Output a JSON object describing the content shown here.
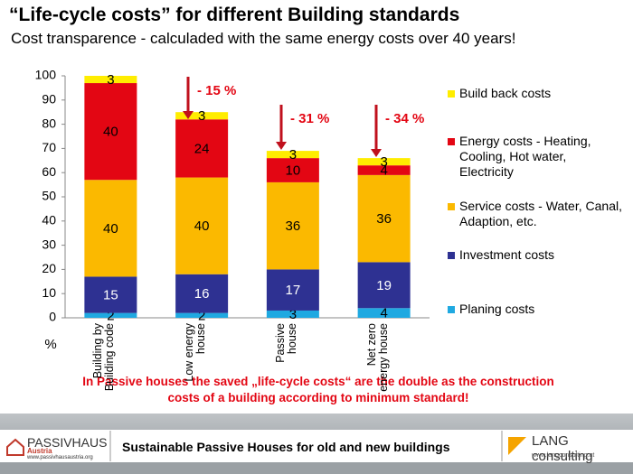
{
  "title": "“Life-cycle costs” for different Building standards",
  "subtitle": "Cost transparence - calculaded with the same energy costs over 40 years!",
  "chart_data": {
    "type": "stacked-bar",
    "categories": [
      "Building by Building code",
      "Low energy house",
      "Passive house",
      "Net zero energy house"
    ],
    "series": [
      {
        "name": "Planing costs",
        "color": "#1fa9e1",
        "values": [
          2,
          2,
          3,
          4
        ]
      },
      {
        "name": "Investment costs",
        "color": "#2e3192",
        "values": [
          15,
          16,
          17,
          19
        ]
      },
      {
        "name": "Service costs - Water, Canal, Adaption, etc.",
        "color": "#fbb900",
        "values": [
          40,
          40,
          36,
          36
        ]
      },
      {
        "name": "Energy costs - Heating, Cooling, Hot water, Electricity",
        "color": "#e30613",
        "values": [
          40,
          24,
          10,
          4
        ]
      },
      {
        "name": "Build back costs",
        "color": "#ffed00",
        "values": [
          3,
          3,
          3,
          3
        ]
      }
    ],
    "ylim": [
      0,
      100
    ],
    "yticks": [
      0,
      10,
      20,
      30,
      40,
      50,
      60,
      70,
      80,
      90,
      100
    ],
    "ylabel": "%",
    "annotations": [
      "- 15 %",
      "- 31 %",
      "- 34 %"
    ],
    "legend": "right"
  },
  "note": "In Passive houses the saved „life-cycle costs“ are the double as the construction costs of a building according  to minimum standard!",
  "footer": {
    "text": "Sustainable Passive Houses for old and new buildings",
    "left_logo": "PASSIVHAUS",
    "left_logo_sub": "Austria",
    "left_url": "www.passivhausaustria.org",
    "right_logo": "LANG consulting",
    "right_url": "www.langconsulting.at"
  }
}
